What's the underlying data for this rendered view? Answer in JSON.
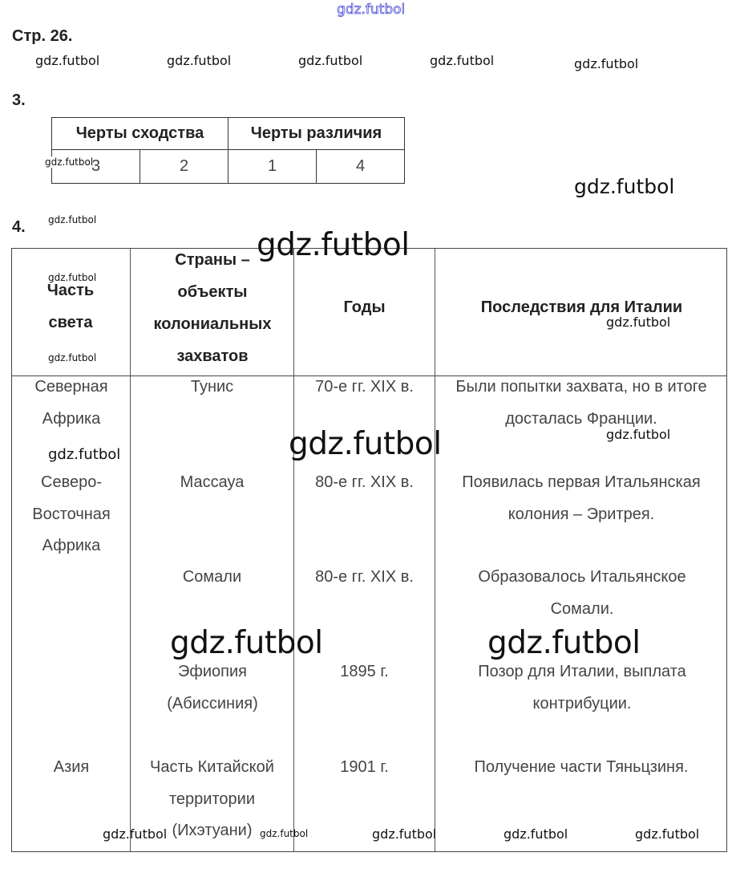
{
  "page_label": "Стр. 26.",
  "task3": {
    "number": "3.",
    "headers": [
      "Черты сходства",
      "Черты различия"
    ],
    "values": [
      "3",
      "2",
      "1",
      "4"
    ]
  },
  "task4": {
    "number": "4.",
    "headers": {
      "part": "Часть света",
      "countries": "Страны – объекты колониальных захватов",
      "years": "Годы",
      "consequences": "Последствия для Италии"
    },
    "rows": [
      {
        "part": "Северная Африка",
        "country": "Тунис",
        "years": "70-е гг. XIX в.",
        "consequence": "Были попытки захвата, но в итоге досталась Франции."
      },
      {
        "part": "Северо-Восточная Африка",
        "country": "Массауа",
        "years": "80-е гг. XIX в.",
        "consequence": "Появилась первая Итальянская колония – Эритрея."
      },
      {
        "part": "",
        "country": "Сомали",
        "years": "80-е гг. XIX в.",
        "consequence": "Образовалось Итальянское Сомали."
      },
      {
        "part": "",
        "country": "Эфиопия (Абиссиния)",
        "years": "1895 г.",
        "consequence": "Позор для Италии, выплата контрибуции."
      },
      {
        "part": "Азия",
        "country": "Часть Китайской территории (Ихэтуани)",
        "years": "1901 г.",
        "consequence": "Получение части Тяньцзиня."
      }
    ]
  },
  "watermark": "gdz.futbol"
}
